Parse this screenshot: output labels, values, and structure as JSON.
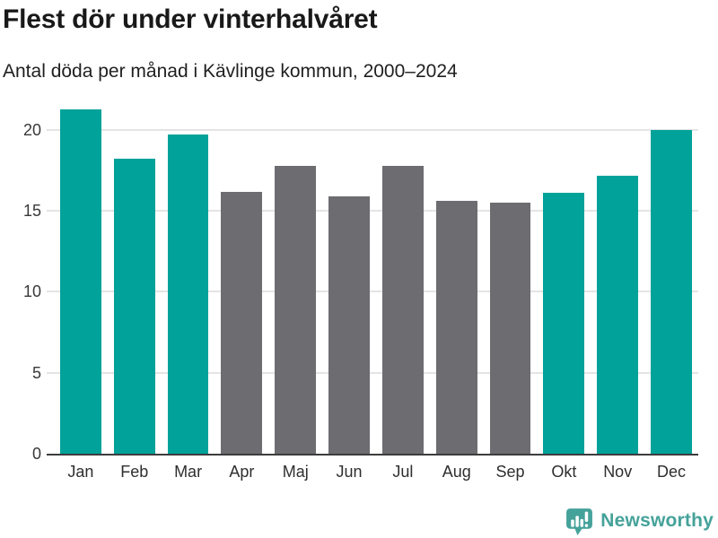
{
  "title": "Flest dör under vinterhalvåret",
  "subtitle": "Antal döda per månad i Kävlinge kommun, 2000–2024",
  "branding": {
    "logo_text": "Newsworthy",
    "logo_icon": "newsworthy-speech-bubble-bar-chart-icon",
    "logo_color": "#45a29a"
  },
  "colors": {
    "winter_bar": "#00a29a",
    "summer_bar": "#6c6c71",
    "gridline": "#e4e4e4",
    "axis_line": "#3d3d3d",
    "title_text": "#191919",
    "tick_text": "#383838"
  },
  "chart_data": {
    "type": "bar",
    "title": "Flest dör under vinterhalvåret",
    "subtitle": "Antal döda per månad i Kävlinge kommun, 2000–2024",
    "categories": [
      "Jan",
      "Feb",
      "Mar",
      "Apr",
      "Maj",
      "Jun",
      "Jul",
      "Aug",
      "Sep",
      "Okt",
      "Nov",
      "Dec"
    ],
    "values": [
      21.3,
      18.2,
      19.7,
      16.2,
      17.8,
      15.9,
      17.8,
      15.6,
      15.5,
      16.1,
      17.2,
      20.0
    ],
    "bar_colors": [
      "#00a29a",
      "#00a29a",
      "#00a29a",
      "#6c6c71",
      "#6c6c71",
      "#6c6c71",
      "#6c6c71",
      "#6c6c71",
      "#6c6c71",
      "#00a29a",
      "#00a29a",
      "#00a29a"
    ],
    "xlabel": "",
    "ylabel": "",
    "yticks": [
      0,
      5,
      10,
      15,
      20
    ],
    "ylim": [
      0,
      21.66
    ],
    "grid": true,
    "legend": false
  }
}
